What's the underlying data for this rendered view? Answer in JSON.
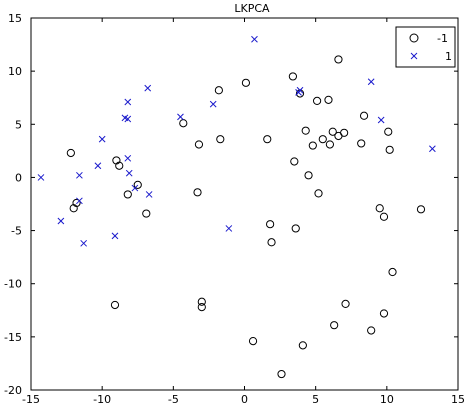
{
  "colors": {
    "circle_series": "#000000",
    "cross_series": "#1a1acc",
    "axis": "#000000",
    "background": "#ffffff"
  },
  "chart_data": {
    "type": "scatter",
    "title": "LKPCA",
    "xlabel": "",
    "ylabel": "",
    "xlim": [
      -15,
      15
    ],
    "ylim": [
      -20,
      15
    ],
    "xticks": [
      -15,
      -10,
      -5,
      0,
      5,
      10,
      15
    ],
    "yticks": [
      -20,
      -15,
      -10,
      -5,
      0,
      5,
      10,
      15
    ],
    "grid": false,
    "legend": "top-right",
    "series": [
      {
        "name": "-1",
        "marker": "circle",
        "points": [
          [
            -12.2,
            2.3
          ],
          [
            -12.0,
            -2.9
          ],
          [
            -11.8,
            -2.4
          ],
          [
            -9.0,
            1.6
          ],
          [
            -8.8,
            1.1
          ],
          [
            -8.2,
            -1.6
          ],
          [
            -7.5,
            -0.7
          ],
          [
            -6.9,
            -3.4
          ],
          [
            -9.1,
            -12.0
          ],
          [
            -4.3,
            5.1
          ],
          [
            -3.2,
            3.1
          ],
          [
            -3.3,
            -1.4
          ],
          [
            -3.0,
            -11.7
          ],
          [
            -3.0,
            -12.2
          ],
          [
            -1.8,
            8.2
          ],
          [
            -1.7,
            3.6
          ],
          [
            0.1,
            8.9
          ],
          [
            0.6,
            -15.4
          ],
          [
            1.6,
            3.6
          ],
          [
            1.8,
            -4.4
          ],
          [
            1.9,
            -6.1
          ],
          [
            2.6,
            -18.5
          ],
          [
            3.4,
            9.5
          ],
          [
            3.5,
            1.5
          ],
          [
            3.6,
            -4.8
          ],
          [
            3.9,
            7.9
          ],
          [
            4.1,
            -15.8
          ],
          [
            4.3,
            4.4
          ],
          [
            4.5,
            0.2
          ],
          [
            4.8,
            3.0
          ],
          [
            5.1,
            7.2
          ],
          [
            5.2,
            -1.5
          ],
          [
            5.5,
            3.6
          ],
          [
            5.9,
            7.3
          ],
          [
            6.0,
            3.1
          ],
          [
            6.2,
            4.3
          ],
          [
            6.3,
            -13.9
          ],
          [
            6.6,
            11.1
          ],
          [
            6.6,
            3.9
          ],
          [
            7.0,
            4.2
          ],
          [
            7.1,
            -11.9
          ],
          [
            8.2,
            3.2
          ],
          [
            8.4,
            5.8
          ],
          [
            8.9,
            -14.4
          ],
          [
            9.5,
            -2.9
          ],
          [
            9.8,
            -3.7
          ],
          [
            9.8,
            -12.8
          ],
          [
            10.1,
            4.3
          ],
          [
            10.2,
            2.6
          ],
          [
            10.4,
            -8.9
          ],
          [
            12.4,
            -3.0
          ]
        ]
      },
      {
        "name": "1",
        "marker": "x",
        "points": [
          [
            -14.3,
            0.0
          ],
          [
            -12.9,
            -4.1
          ],
          [
            -11.6,
            -2.2
          ],
          [
            -11.6,
            0.2
          ],
          [
            -11.3,
            -6.2
          ],
          [
            -10.3,
            1.1
          ],
          [
            -10.0,
            3.6
          ],
          [
            -9.1,
            -5.5
          ],
          [
            -8.4,
            5.6
          ],
          [
            -8.2,
            5.5
          ],
          [
            -8.2,
            7.1
          ],
          [
            -8.2,
            1.8
          ],
          [
            -8.1,
            0.4
          ],
          [
            -7.7,
            -1.0
          ],
          [
            -6.8,
            8.4
          ],
          [
            -6.7,
            -1.6
          ],
          [
            -4.5,
            5.7
          ],
          [
            -2.2,
            6.9
          ],
          [
            -1.1,
            -4.8
          ],
          [
            0.7,
            13.0
          ],
          [
            3.8,
            8.0
          ],
          [
            3.9,
            8.2
          ],
          [
            8.9,
            9.0
          ],
          [
            9.6,
            5.4
          ],
          [
            13.2,
            2.7
          ]
        ]
      }
    ],
    "legend_entries": [
      "-1",
      "1"
    ]
  }
}
